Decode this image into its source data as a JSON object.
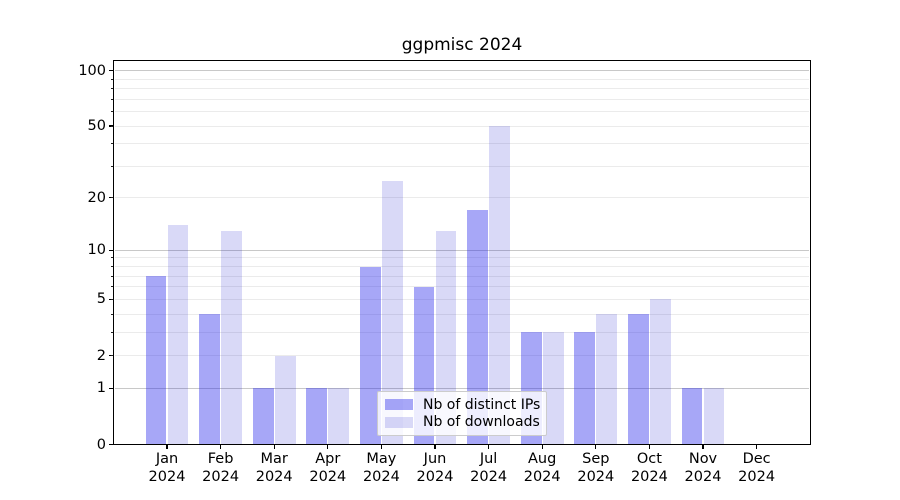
{
  "title": "ggpmisc 2024",
  "chart_data": {
    "type": "bar",
    "title": "ggpmisc 2024",
    "x_tick_months": [
      "Jan",
      "Feb",
      "Mar",
      "Apr",
      "May",
      "Jun",
      "Jul",
      "Aug",
      "Sep",
      "Oct",
      "Nov",
      "Dec"
    ],
    "x_tick_year": "2024",
    "series": [
      {
        "name": "Nb of distinct IPs",
        "color": "#a7a7f5",
        "fill": "rgba(35,35,235,0.40)",
        "values": [
          7,
          4,
          1,
          1,
          8,
          6,
          17,
          3,
          3,
          4,
          1,
          0
        ]
      },
      {
        "name": "Nb of downloads",
        "color": "#d9d9f7",
        "fill": "rgba(2,2,202,0.15)",
        "values": [
          14,
          13,
          2,
          1,
          25,
          13,
          50,
          3,
          4,
          5,
          1,
          0
        ]
      }
    ],
    "yscale": "log1p",
    "ylim": [
      0,
      113
    ],
    "yticks_labeled": [
      0,
      1,
      2,
      5,
      10,
      20,
      50,
      100
    ],
    "gridlines_major": [
      1,
      10,
      100
    ],
    "gridlines_minor": [
      2,
      3,
      4,
      5,
      6,
      7,
      8,
      9,
      20,
      30,
      40,
      50,
      60,
      70,
      80,
      90
    ],
    "legend": {
      "items": [
        "Nb of distinct IPs",
        "Nb of downloads"
      ],
      "position": "lower center"
    },
    "colors": {
      "grid_major": "#c8c8c8",
      "grid_minor": "#ebebeb",
      "axis": "#000000",
      "text": "#000000",
      "legend_border": "#cccccc",
      "background": "#ffffff"
    }
  }
}
